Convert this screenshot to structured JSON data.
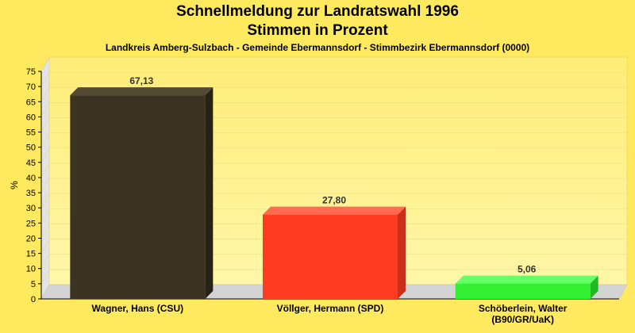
{
  "chart_data": {
    "type": "bar",
    "title": "Schnellmeldung zur Landratswahl 1996",
    "subtitle": "Stimmen in Prozent",
    "caption": "Landkreis Amberg-Sulzbach - Gemeinde Ebermannsdorf - Stimmbezirk Ebermannsdorf (0000)",
    "ylabel": "%",
    "ylim": [
      0,
      75
    ],
    "yticks": [
      "0",
      "5",
      "10",
      "15",
      "20",
      "25",
      "30",
      "35",
      "40",
      "45",
      "50",
      "55",
      "60",
      "65",
      "70",
      "75"
    ],
    "grid": true,
    "categories": [
      [
        "Wagner, Hans (CSU)"
      ],
      [
        "Völlger, Hermann (SPD)"
      ],
      [
        "Schöberlein, Walter",
        "(B90/GR/UaK)"
      ]
    ],
    "values": [
      67.13,
      27.8,
      5.06
    ],
    "value_labels": [
      "67,13",
      "27,80",
      "5,06"
    ],
    "colors": [
      {
        "front": "#3b3422",
        "side": "#272216",
        "top": "#524a32"
      },
      {
        "front": "#ff3c22",
        "side": "#c8301a",
        "top": "#ff6a50"
      },
      {
        "front": "#33f033",
        "side": "#22b822",
        "top": "#66ff66"
      }
    ]
  }
}
